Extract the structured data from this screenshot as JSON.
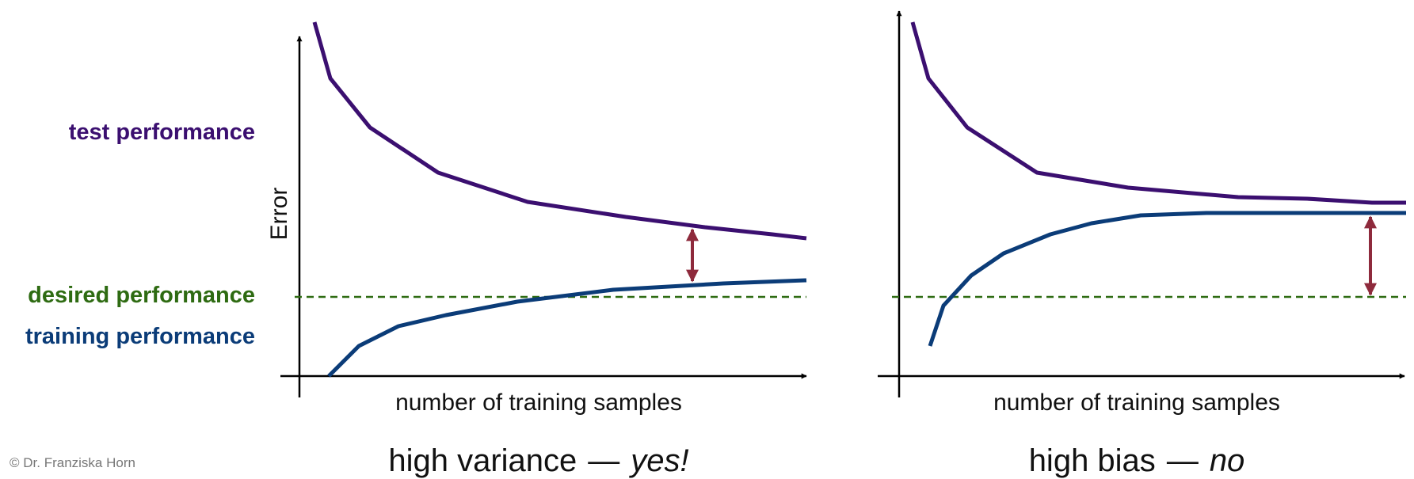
{
  "colors": {
    "test": "#3b0f70",
    "training": "#0b3c78",
    "desired": "#2e6b12",
    "gap_arrow": "#8e2a3c",
    "axis": "#000000"
  },
  "labels": {
    "test": "test performance",
    "desired": "desired performance",
    "training": "training performance"
  },
  "y_axis_label": "Error",
  "panels": [
    {
      "xlabel": "number of training samples",
      "caption_main": "high variance",
      "caption_dash": "—",
      "caption_em": "yes!"
    },
    {
      "xlabel": "number of training samples",
      "caption_main": "high bias",
      "caption_dash": "—",
      "caption_em": "no"
    }
  ],
  "copyright": "© Dr. Franziska Horn"
}
